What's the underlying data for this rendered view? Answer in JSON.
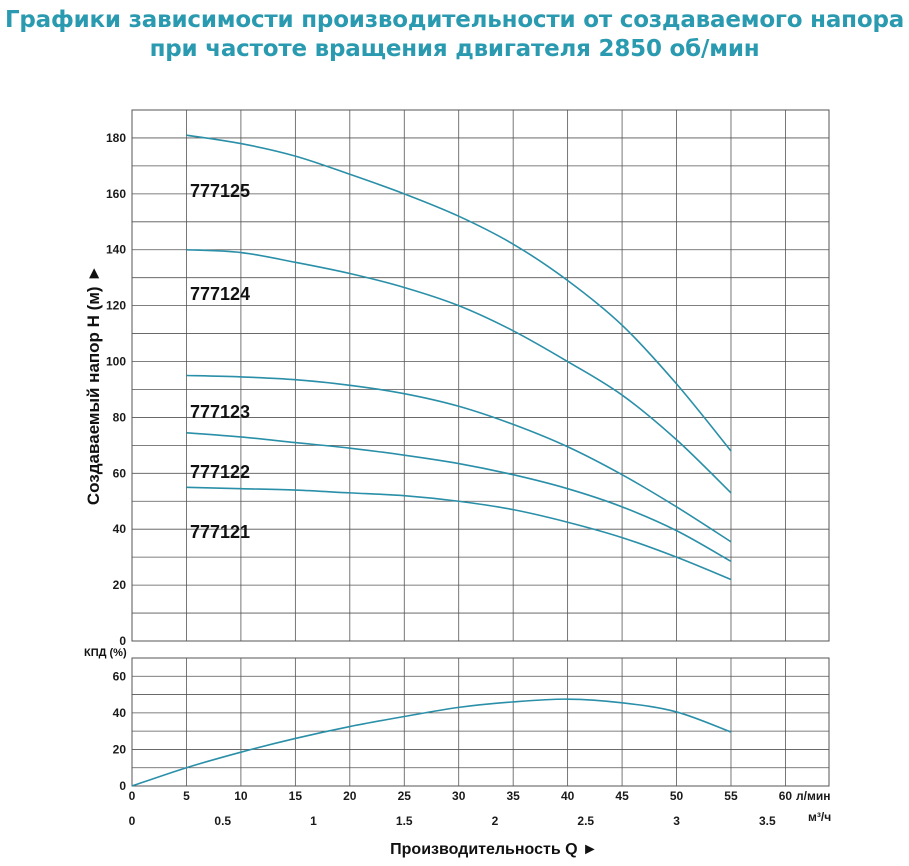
{
  "header": {
    "title_line1": "Графики зависимости производительности от создаваемого напора",
    "title_line2": "при частоте вращения двигателя 2850 об/мин"
  },
  "colors": {
    "curve": "#2a8fa8",
    "grid": "#555555",
    "title": "#2a9ab0"
  },
  "chart_data": [
    {
      "type": "line",
      "ylabel": "Создаваемый напор H (м) ►",
      "ylim": [
        0,
        190
      ],
      "yticks": [
        0,
        20,
        40,
        60,
        80,
        100,
        120,
        140,
        160,
        180
      ],
      "xlim": [
        0,
        64
      ],
      "grid": true,
      "series": [
        {
          "name": "777125",
          "x": [
            5,
            10,
            15,
            20,
            25,
            30,
            35,
            40,
            45,
            50,
            55
          ],
          "y": [
            181,
            178,
            173.5,
            167,
            160,
            152,
            142,
            129,
            113,
            92,
            68
          ]
        },
        {
          "name": "777124",
          "x": [
            5,
            10,
            15,
            20,
            25,
            30,
            35,
            40,
            45,
            50,
            55
          ],
          "y": [
            140,
            139,
            135.5,
            131.5,
            126.5,
            120,
            111,
            100,
            88,
            72,
            53
          ]
        },
        {
          "name": "777123",
          "x": [
            5,
            10,
            15,
            20,
            25,
            30,
            35,
            40,
            45,
            50,
            55
          ],
          "y": [
            95,
            94.5,
            93.5,
            91.5,
            88.5,
            84,
            77.5,
            69.5,
            59.5,
            48,
            35.5
          ]
        },
        {
          "name": "777122",
          "x": [
            5,
            10,
            15,
            20,
            25,
            30,
            35,
            40,
            45,
            50,
            55
          ],
          "y": [
            74.5,
            73,
            71,
            69,
            66.5,
            63.5,
            59.5,
            54.5,
            48,
            39.5,
            28.5
          ]
        },
        {
          "name": "777121",
          "x": [
            5,
            10,
            15,
            20,
            25,
            30,
            35,
            40,
            45,
            50,
            55
          ],
          "y": [
            55,
            54.5,
            54,
            53,
            52,
            50,
            47,
            42.5,
            37,
            30,
            22
          ]
        }
      ]
    },
    {
      "type": "line",
      "ylabel": "КПД (%)",
      "ylim": [
        0,
        70
      ],
      "yticks": [
        0,
        20,
        40,
        60
      ],
      "xlim": [
        0,
        64
      ],
      "grid": true,
      "xlabel": "Производительность Q ►",
      "x_ticks_lmin": [
        0,
        5,
        10,
        15,
        20,
        25,
        30,
        35,
        40,
        45,
        50,
        55,
        60
      ],
      "x_unit_lmin": "л/мин",
      "x_ticks_m3h": [
        "0",
        "0.5",
        "1",
        "1.5",
        "2",
        "2.5",
        "3",
        "3.5"
      ],
      "x_unit_m3h": "м³/ч",
      "series": [
        {
          "x": [
            0,
            5,
            10,
            15,
            20,
            25,
            30,
            35,
            40,
            45,
            50,
            55
          ],
          "y": [
            0,
            10,
            18.5,
            26,
            32.5,
            38,
            43,
            46,
            47.5,
            45.5,
            40.5,
            29.5
          ]
        }
      ]
    }
  ]
}
